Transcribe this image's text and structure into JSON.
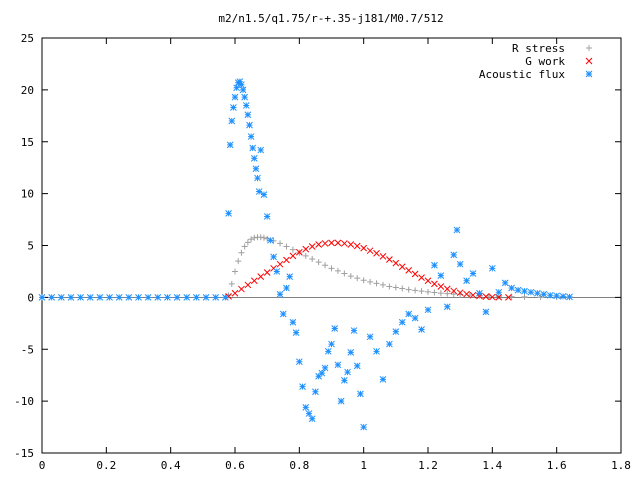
{
  "chart_data": {
    "type": "scatter",
    "title": "m2/n1.5/q1.75/r-+.35-j181/M0.7/512",
    "xlabel": "",
    "ylabel": "",
    "xlim": [
      0,
      1.8
    ],
    "ylim": [
      -15,
      25
    ],
    "x_ticks": [
      0,
      0.2,
      0.4,
      0.6,
      0.8,
      1,
      1.2,
      1.4,
      1.6,
      1.8
    ],
    "x_tick_labels": [
      "0",
      "0.2",
      "0.4",
      "0.6",
      "0.8",
      "1",
      "1.2",
      "1.4",
      "1.6",
      "1.8"
    ],
    "y_ticks": [
      -15,
      -10,
      -5,
      0,
      5,
      10,
      15,
      20,
      25
    ],
    "y_tick_labels": [
      "-15",
      "-10",
      "-5",
      "0",
      "5",
      "10",
      "15",
      "20",
      "25"
    ],
    "grid": false,
    "legend_position": "top-right",
    "series": [
      {
        "name": "R stress",
        "marker": "plus",
        "color": "#a0a0a0",
        "points": [
          [
            0.58,
            0.2
          ],
          [
            0.59,
            1.3
          ],
          [
            0.6,
            2.5
          ],
          [
            0.61,
            3.5
          ],
          [
            0.62,
            4.3
          ],
          [
            0.63,
            4.9
          ],
          [
            0.64,
            5.3
          ],
          [
            0.65,
            5.6
          ],
          [
            0.66,
            5.75
          ],
          [
            0.67,
            5.8
          ],
          [
            0.68,
            5.8
          ],
          [
            0.69,
            5.75
          ],
          [
            0.7,
            5.65
          ],
          [
            0.72,
            5.45
          ],
          [
            0.74,
            5.2
          ],
          [
            0.76,
            4.9
          ],
          [
            0.78,
            4.6
          ],
          [
            0.8,
            4.3
          ],
          [
            0.82,
            4.0
          ],
          [
            0.84,
            3.7
          ],
          [
            0.86,
            3.4
          ],
          [
            0.88,
            3.1
          ],
          [
            0.9,
            2.8
          ],
          [
            0.92,
            2.55
          ],
          [
            0.94,
            2.3
          ],
          [
            0.96,
            2.05
          ],
          [
            0.98,
            1.85
          ],
          [
            1.0,
            1.65
          ],
          [
            1.02,
            1.5
          ],
          [
            1.04,
            1.35
          ],
          [
            1.06,
            1.2
          ],
          [
            1.08,
            1.05
          ],
          [
            1.1,
            0.95
          ],
          [
            1.12,
            0.85
          ],
          [
            1.14,
            0.75
          ],
          [
            1.16,
            0.67
          ],
          [
            1.18,
            0.6
          ],
          [
            1.2,
            0.53
          ],
          [
            1.22,
            0.47
          ],
          [
            1.24,
            0.41
          ],
          [
            1.26,
            0.36
          ],
          [
            1.28,
            0.31
          ],
          [
            1.3,
            0.27
          ],
          [
            1.33,
            0.22
          ],
          [
            1.36,
            0.17
          ],
          [
            1.39,
            0.13
          ],
          [
            1.42,
            0.1
          ],
          [
            1.46,
            0.07
          ],
          [
            1.5,
            0.05
          ],
          [
            1.55,
            0.03
          ],
          [
            1.6,
            0.02
          ],
          [
            1.64,
            0.01
          ]
        ]
      },
      {
        "name": "G work",
        "marker": "cross",
        "color": "#ff0000",
        "points": [
          [
            0.58,
            0.1
          ],
          [
            0.6,
            0.4
          ],
          [
            0.62,
            0.8
          ],
          [
            0.64,
            1.2
          ],
          [
            0.66,
            1.6
          ],
          [
            0.68,
            2.0
          ],
          [
            0.7,
            2.4
          ],
          [
            0.72,
            2.8
          ],
          [
            0.74,
            3.2
          ],
          [
            0.76,
            3.6
          ],
          [
            0.78,
            4.0
          ],
          [
            0.8,
            4.35
          ],
          [
            0.82,
            4.65
          ],
          [
            0.84,
            4.9
          ],
          [
            0.86,
            5.1
          ],
          [
            0.88,
            5.2
          ],
          [
            0.9,
            5.25
          ],
          [
            0.92,
            5.25
          ],
          [
            0.94,
            5.2
          ],
          [
            0.96,
            5.1
          ],
          [
            0.98,
            4.95
          ],
          [
            1.0,
            4.75
          ],
          [
            1.02,
            4.5
          ],
          [
            1.04,
            4.25
          ],
          [
            1.06,
            3.95
          ],
          [
            1.08,
            3.65
          ],
          [
            1.1,
            3.3
          ],
          [
            1.12,
            2.95
          ],
          [
            1.14,
            2.6
          ],
          [
            1.16,
            2.25
          ],
          [
            1.18,
            1.9
          ],
          [
            1.2,
            1.6
          ],
          [
            1.22,
            1.3
          ],
          [
            1.24,
            1.05
          ],
          [
            1.26,
            0.82
          ],
          [
            1.28,
            0.62
          ],
          [
            1.3,
            0.45
          ],
          [
            1.32,
            0.32
          ],
          [
            1.34,
            0.21
          ],
          [
            1.36,
            0.13
          ],
          [
            1.38,
            0.07
          ],
          [
            1.4,
            0.03
          ],
          [
            1.42,
            0.01
          ],
          [
            1.45,
            0.0
          ]
        ]
      },
      {
        "name": "Acoustic flux",
        "marker": "star",
        "color": "#1e90ff",
        "points": [
          [
            0.0,
            0.0
          ],
          [
            0.03,
            0.0
          ],
          [
            0.06,
            0.0
          ],
          [
            0.09,
            0.0
          ],
          [
            0.12,
            0.0
          ],
          [
            0.15,
            0.0
          ],
          [
            0.18,
            0.0
          ],
          [
            0.21,
            0.0
          ],
          [
            0.24,
            0.0
          ],
          [
            0.27,
            0.0
          ],
          [
            0.3,
            0.0
          ],
          [
            0.33,
            0.0
          ],
          [
            0.36,
            0.0
          ],
          [
            0.39,
            0.0
          ],
          [
            0.42,
            0.0
          ],
          [
            0.45,
            0.0
          ],
          [
            0.48,
            0.0
          ],
          [
            0.51,
            0.0
          ],
          [
            0.54,
            0.0
          ],
          [
            0.57,
            0.0
          ],
          [
            0.58,
            8.1
          ],
          [
            0.585,
            14.7
          ],
          [
            0.59,
            17.0
          ],
          [
            0.595,
            18.3
          ],
          [
            0.6,
            19.3
          ],
          [
            0.605,
            20.2
          ],
          [
            0.61,
            20.7
          ],
          [
            0.615,
            20.8
          ],
          [
            0.62,
            20.5
          ],
          [
            0.625,
            20.0
          ],
          [
            0.63,
            19.3
          ],
          [
            0.635,
            18.5
          ],
          [
            0.64,
            17.6
          ],
          [
            0.645,
            16.6
          ],
          [
            0.65,
            15.5
          ],
          [
            0.655,
            14.4
          ],
          [
            0.66,
            13.4
          ],
          [
            0.665,
            12.4
          ],
          [
            0.67,
            11.5
          ],
          [
            0.675,
            10.2
          ],
          [
            0.68,
            14.2
          ],
          [
            0.69,
            9.9
          ],
          [
            0.7,
            7.8
          ],
          [
            0.71,
            5.5
          ],
          [
            0.72,
            3.9
          ],
          [
            0.73,
            2.5
          ],
          [
            0.74,
            0.3
          ],
          [
            0.75,
            -1.6
          ],
          [
            0.76,
            0.9
          ],
          [
            0.77,
            2.0
          ],
          [
            0.78,
            -2.4
          ],
          [
            0.79,
            -3.4
          ],
          [
            0.8,
            -6.2
          ],
          [
            0.81,
            -8.6
          ],
          [
            0.82,
            -10.6
          ],
          [
            0.83,
            -11.2
          ],
          [
            0.84,
            -11.7
          ],
          [
            0.85,
            -9.1
          ],
          [
            0.86,
            -7.6
          ],
          [
            0.87,
            -7.3
          ],
          [
            0.88,
            -6.8
          ],
          [
            0.89,
            -5.2
          ],
          [
            0.9,
            -4.5
          ],
          [
            0.91,
            -3.0
          ],
          [
            0.92,
            -6.5
          ],
          [
            0.93,
            -10.0
          ],
          [
            0.94,
            -8.0
          ],
          [
            0.95,
            -7.2
          ],
          [
            0.96,
            -5.3
          ],
          [
            0.97,
            -3.2
          ],
          [
            0.98,
            -6.6
          ],
          [
            0.99,
            -9.3
          ],
          [
            1.0,
            -12.5
          ],
          [
            1.02,
            -3.8
          ],
          [
            1.04,
            -5.2
          ],
          [
            1.06,
            -7.9
          ],
          [
            1.08,
            -4.5
          ],
          [
            1.1,
            -3.3
          ],
          [
            1.12,
            -2.4
          ],
          [
            1.14,
            -1.6
          ],
          [
            1.16,
            -2.0
          ],
          [
            1.18,
            -3.1
          ],
          [
            1.2,
            -1.2
          ],
          [
            1.22,
            3.1
          ],
          [
            1.24,
            2.1
          ],
          [
            1.26,
            -0.9
          ],
          [
            1.28,
            4.1
          ],
          [
            1.29,
            6.5
          ],
          [
            1.3,
            3.2
          ],
          [
            1.32,
            1.6
          ],
          [
            1.34,
            2.3
          ],
          [
            1.36,
            0.4
          ],
          [
            1.38,
            -1.4
          ],
          [
            1.4,
            2.8
          ],
          [
            1.42,
            0.5
          ],
          [
            1.44,
            1.4
          ],
          [
            1.46,
            0.9
          ],
          [
            1.48,
            0.7
          ],
          [
            1.5,
            0.6
          ],
          [
            1.52,
            0.5
          ],
          [
            1.54,
            0.4
          ],
          [
            1.56,
            0.3
          ],
          [
            1.58,
            0.2
          ],
          [
            1.6,
            0.15
          ],
          [
            1.62,
            0.1
          ],
          [
            1.64,
            0.05
          ]
        ]
      }
    ]
  }
}
